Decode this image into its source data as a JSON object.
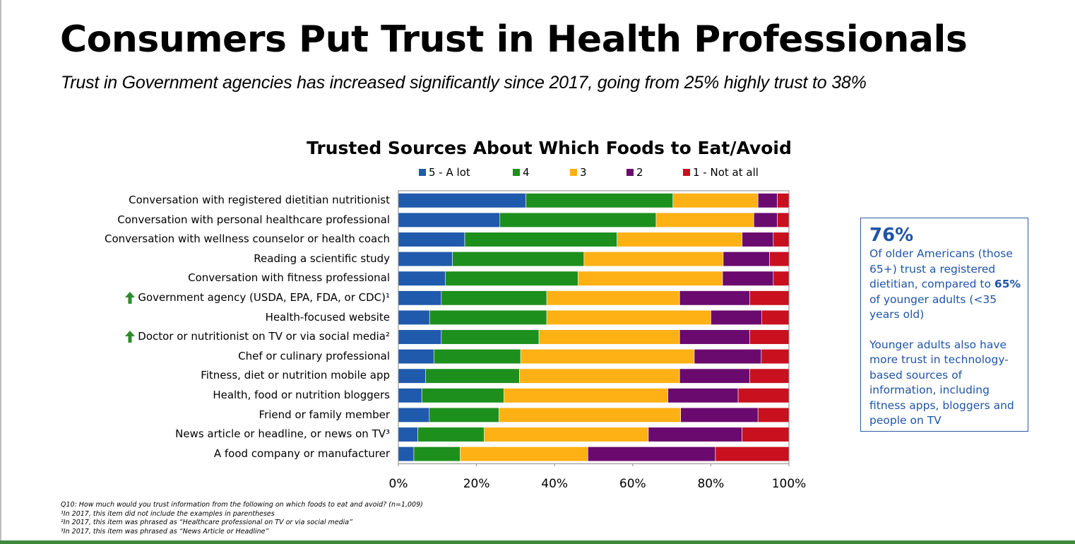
{
  "header": {
    "title": "Consumers Put Trust in Health Professionals",
    "subtitle": "Trust in Government agencies has increased significantly since 2017, going from 25% highly trust to 38%"
  },
  "chart_data": {
    "type": "bar",
    "orientation": "horizontal",
    "stacked": true,
    "title": "Trusted Sources About Which Foods to Eat/Avoid",
    "legend_position": "top",
    "grid": false,
    "xlim": [
      0,
      100
    ],
    "x_ticks": [
      "0%",
      "20%",
      "40%",
      "60%",
      "80%",
      "100%"
    ],
    "categories": [
      "Conversation with registered dietitian nutritionist",
      "Conversation with personal healthcare professional",
      "Conversation with wellness counselor or health coach",
      "Reading a scientific study",
      "Conversation with fitness professional",
      "Government agency (USDA, EPA, FDA, or CDC)¹",
      "Health-focused website",
      "Doctor or nutritionist on TV or via social media²",
      "Chef or culinary professional",
      "Fitness, diet or nutrition mobile app",
      "Health, food or nutrition bloggers",
      "Friend or family member",
      "News article or headline, or news on TV³",
      "A food company or manufacturer"
    ],
    "up_arrow_rows": [
      5,
      7
    ],
    "series": [
      {
        "name": "5 - A lot",
        "color": "#1f5aac",
        "values": [
          33,
          26,
          17,
          14,
          12,
          11,
          8,
          11,
          9,
          7,
          6,
          8,
          5,
          4
        ]
      },
      {
        "name": "4",
        "color": "#1d8f1d",
        "values": [
          38,
          40,
          39,
          34,
          34,
          27,
          30,
          25,
          22,
          24,
          21,
          18,
          17,
          12
        ]
      },
      {
        "name": "3",
        "color": "#fdb114",
        "values": [
          22,
          25,
          32,
          36,
          37,
          34,
          42,
          36,
          44,
          41,
          42,
          47,
          42,
          33
        ]
      },
      {
        "name": "2",
        "color": "#6b0a6e",
        "values": [
          5,
          6,
          8,
          12,
          13,
          18,
          13,
          18,
          17,
          18,
          18,
          20,
          24,
          33
        ]
      },
      {
        "name": "1 - Not at all",
        "color": "#c8101e",
        "values": [
          3,
          3,
          4,
          5,
          4,
          10,
          7,
          10,
          7,
          10,
          13,
          8,
          12,
          19
        ]
      }
    ]
  },
  "callout": {
    "stat": "76%",
    "line1": "Of older Americans (those 65+) trust a registered dietitian, compared to",
    "bold_stat": "65%",
    "line2": "of younger adults (<35 years old)",
    "paragraph2": "Younger adults also have more trust in technology-based sources of information, including fitness apps, bloggers and people on TV"
  },
  "footnotes": [
    "Q10: How much would you trust information from the following on which foods to eat and avoid? (n=1,009)",
    "¹In 2017, this item did not include the examples in parentheses",
    "²In 2017, this item was phrased as “Healthcare professional on TV or via social media”",
    "³In 2017, this item was phrased as “News Article or Headline”"
  ],
  "icons": {
    "trend_up": "green-up-arrow-icon",
    "arrow_color": "#2e8b2e"
  }
}
